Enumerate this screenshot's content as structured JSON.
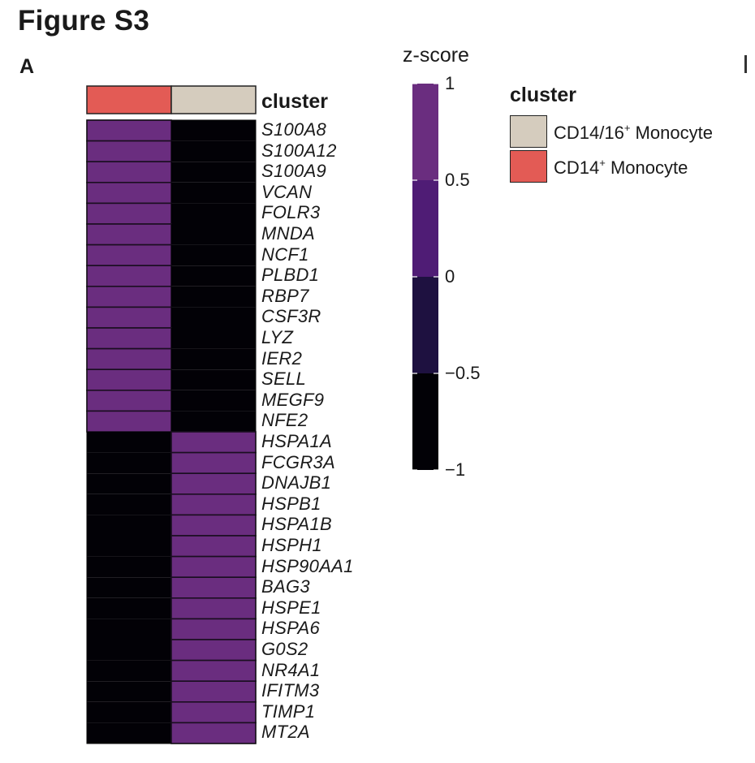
{
  "figure": {
    "title": "Figure S3",
    "panel": "A"
  },
  "colors": {
    "high": "#6a2d7f",
    "mid_high": "#4f1c75",
    "mid_low": "#1e1140",
    "low": "#020106",
    "cd14_monocyte": "#e35b55",
    "cd14_16_monocyte": "#d5ccbe",
    "grid_line": "#1a0e20"
  },
  "chart_data": {
    "type": "heatmap",
    "title": "",
    "annotation_label": "cluster",
    "columns": [
      {
        "cluster": "CD14+ Monocyte"
      },
      {
        "cluster": "CD14/16+ Monocyte"
      }
    ],
    "rows": [
      "S100A8",
      "S100A12",
      "S100A9",
      "VCAN",
      "FOLR3",
      "MNDA",
      "NCF1",
      "PLBD1",
      "RBP7",
      "CSF3R",
      "LYZ",
      "IER2",
      "SELL",
      "MEGF9",
      "NFE2",
      "HSPA1A",
      "FCGR3A",
      "DNAJB1",
      "HSPB1",
      "HSPA1B",
      "HSPH1",
      "HSP90AA1",
      "BAG3",
      "HSPE1",
      "HSPA6",
      "G0S2",
      "NR4A1",
      "IFITM3",
      "TIMP1",
      "MT2A"
    ],
    "values": [
      [
        1,
        -1
      ],
      [
        1,
        -1
      ],
      [
        1,
        -1
      ],
      [
        1,
        -1
      ],
      [
        1,
        -1
      ],
      [
        1,
        -1
      ],
      [
        1,
        -1
      ],
      [
        1,
        -1
      ],
      [
        1,
        -1
      ],
      [
        1,
        -1
      ],
      [
        1,
        -1
      ],
      [
        1,
        -1
      ],
      [
        1,
        -1
      ],
      [
        1,
        -1
      ],
      [
        1,
        -1
      ],
      [
        -1,
        1
      ],
      [
        -1,
        1
      ],
      [
        -1,
        1
      ],
      [
        -1,
        1
      ],
      [
        -1,
        1
      ],
      [
        -1,
        1
      ],
      [
        -1,
        1
      ],
      [
        -1,
        1
      ],
      [
        -1,
        1
      ],
      [
        -1,
        1
      ],
      [
        -1,
        1
      ],
      [
        -1,
        1
      ],
      [
        -1,
        1
      ],
      [
        -1,
        1
      ],
      [
        -1,
        1
      ]
    ],
    "colorbar": {
      "title": "z-score",
      "range": [
        -1,
        1
      ],
      "ticks": [
        1,
        0.5,
        0,
        -0.5,
        -1
      ],
      "tick_labels": [
        "1",
        "0.5",
        "0",
        "−0.5",
        "−1"
      ]
    },
    "legend": {
      "title": "cluster",
      "items": [
        {
          "label_main": "CD14/16",
          "label_sup": "+",
          "label_rest": " Monocyte",
          "color": "#d5ccbe"
        },
        {
          "label_main": "CD14",
          "label_sup": "+",
          "label_rest": " Monocyte",
          "color": "#e35b55"
        }
      ]
    }
  }
}
